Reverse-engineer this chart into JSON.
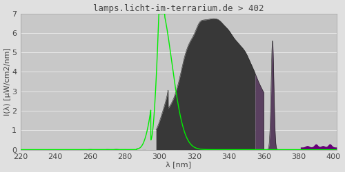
{
  "title": "lamps.licht-im-terrarium.de > 402",
  "xlabel": "λ [nm]",
  "ylabel": "I(λ) [µW/cm2/nm]",
  "xlim": [
    220,
    402
  ],
  "ylim": [
    0,
    7.0
  ],
  "yticks": [
    0.0,
    1.0,
    2.0,
    3.0,
    4.0,
    5.0,
    6.0,
    7.0
  ],
  "xticks": [
    220,
    240,
    260,
    280,
    300,
    320,
    340,
    360,
    380,
    400
  ],
  "bg_color": "#e0e0e0",
  "plot_bg_color": "#c8c8c8",
  "grid_color": "#e8e8e8",
  "title_color": "#444444",
  "axis_label_color": "#444444",
  "tick_color": "#444444",
  "spectrum_dark_color": "#383838",
  "spectrum_purple_color": "#5a4060",
  "spectrum_line_color": "#282828",
  "vitamin_d_color": "#00ee00",
  "purple_fill_color": "#660077",
  "title_fontsize": 9,
  "axis_fontsize": 8,
  "tick_fontsize": 8
}
